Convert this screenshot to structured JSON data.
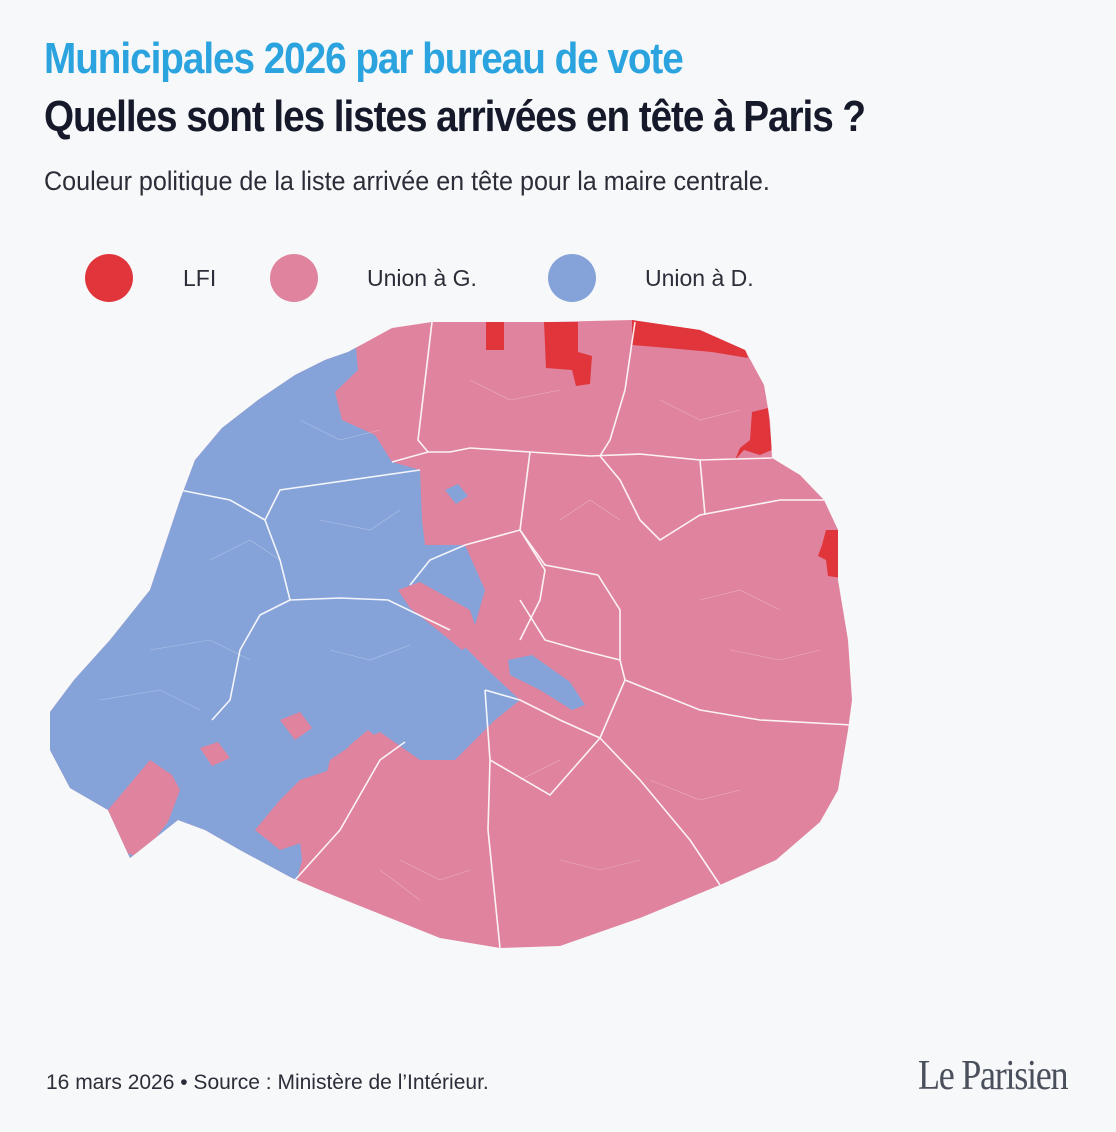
{
  "header": {
    "kicker": "Municipales 2026 par bureau de vote",
    "title": "Quelles sont les listes arrivées en tête à Paris ?",
    "subtitle": "Couleur politique de la liste arrivée en tête pour la maire centrale."
  },
  "legend": [
    {
      "label": "LFI",
      "color": "#e0353a"
    },
    {
      "label": "Union à G.",
      "color": "#e0839e"
    },
    {
      "label": "Union à D.",
      "color": "#85a2d9"
    }
  ],
  "map": {
    "border_color": "#ffffff",
    "regions_by_result": [
      "LFI",
      "Union à G.",
      "Union à D."
    ]
  },
  "footer": {
    "source": "16 mars 2026 • Source : Ministère de l’Intérieur."
  },
  "logo": {
    "text": "Le Parisien"
  }
}
